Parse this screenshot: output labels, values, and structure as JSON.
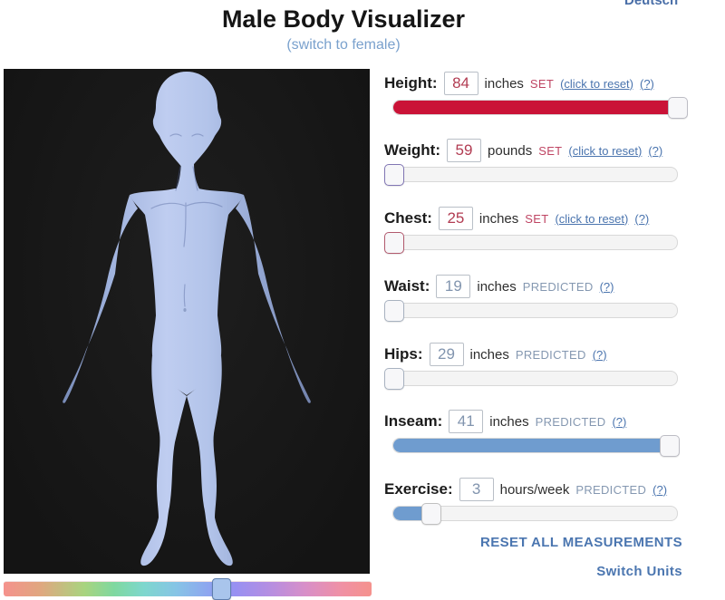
{
  "header": {
    "title": "Male Body Visualizer",
    "subtitle_link": "(switch to female)",
    "language_link": "Deutsch"
  },
  "viewer": {
    "model": "male-3d-body",
    "rotation_percent": 59
  },
  "controls": [
    {
      "name": "height",
      "label": "Height:",
      "value": "84",
      "unit": "inches",
      "status": "SET",
      "reset_link": "(click to reset)",
      "help_link": "(?)",
      "slider": {
        "percent": 100,
        "fill": "#ca1337",
        "thumb_border": "#bcbcc4"
      }
    },
    {
      "name": "weight",
      "label": "Weight:",
      "value": "59",
      "unit": "pounds",
      "status": "SET",
      "reset_link": "(click to reset)",
      "help_link": "(?)",
      "slider": {
        "percent": 0,
        "fill": null,
        "thumb_border": "#8176b4"
      }
    },
    {
      "name": "chest",
      "label": "Chest:",
      "value": "25",
      "unit": "inches",
      "status": "SET",
      "reset_link": "(click to reset)",
      "help_link": "(?)",
      "slider": {
        "percent": 0,
        "fill": null,
        "thumb_border": "#b25a6e"
      }
    },
    {
      "name": "waist",
      "label": "Waist:",
      "value": "19",
      "unit": "inches",
      "status": "PREDICTED",
      "help_link": "(?)",
      "slider": {
        "percent": 0,
        "fill": null,
        "thumb_border": "#a8b2c0"
      }
    },
    {
      "name": "hips",
      "label": "Hips:",
      "value": "29",
      "unit": "inches",
      "status": "PREDICTED",
      "help_link": "(?)",
      "slider": {
        "percent": 0,
        "fill": null,
        "thumb_border": "#a8b2c0"
      }
    },
    {
      "name": "inseam",
      "label": "Inseam:",
      "value": "41",
      "unit": "inches",
      "status": "PREDICTED",
      "help_link": "(?)",
      "slider": {
        "percent": 97,
        "fill": "#6f9ccf",
        "thumb_border": "#bcbcc4"
      }
    },
    {
      "name": "exercise",
      "label": "Exercise:",
      "value": "3",
      "unit": "hours/week",
      "status": "PREDICTED",
      "help_link": "(?)",
      "slider": {
        "percent": 13,
        "fill": "#6f9ccf",
        "thumb_border": "#c0c0c0"
      }
    }
  ],
  "footer": {
    "reset_all_link": "RESET ALL MEASUREMENTS",
    "switch_units_link": "Switch Units"
  },
  "colors": {
    "set_accent": "#ca1337",
    "set_text": "#b23c52",
    "predicted_text": "#8194ae",
    "link_blue": "#4a74ae",
    "footer_link_blue": "#4b76b0",
    "slider_fill_blue": "#6f9ccf"
  }
}
